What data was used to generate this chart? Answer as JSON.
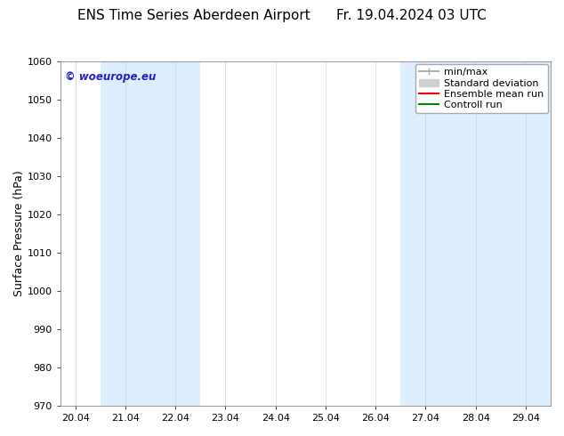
{
  "title": "ENS Time Series Aberdeen Airport",
  "title_right": "Fr. 19.04.2024 03 UTC",
  "ylabel": "Surface Pressure (hPa)",
  "ylim": [
    970,
    1060
  ],
  "yticks": [
    970,
    980,
    990,
    1000,
    1010,
    1020,
    1030,
    1040,
    1050,
    1060
  ],
  "xtick_labels": [
    "20.04",
    "21.04",
    "22.04",
    "23.04",
    "24.04",
    "25.04",
    "26.04",
    "27.04",
    "28.04",
    "29.04"
  ],
  "xtick_positions": [
    0,
    1,
    2,
    3,
    4,
    5,
    6,
    7,
    8,
    9
  ],
  "xlim": [
    -0.3,
    9.5
  ],
  "shaded_bands": [
    {
      "x_start": 0.5,
      "x_end": 1.5,
      "color": "#ddeeff"
    },
    {
      "x_start": 1.5,
      "x_end": 2.5,
      "color": "#ddeeff"
    },
    {
      "x_start": 6.5,
      "x_end": 7.5,
      "color": "#ddeeff"
    },
    {
      "x_start": 7.5,
      "x_end": 8.5,
      "color": "#ddeeff"
    },
    {
      "x_start": 8.5,
      "x_end": 9.5,
      "color": "#ddeeff"
    }
  ],
  "watermark_text": "© woeurope.eu",
  "watermark_color": "#2222cc",
  "legend_labels": [
    "min/max",
    "Standard deviation",
    "Ensemble mean run",
    "Controll run"
  ],
  "legend_minmax_color": "#b0b0b0",
  "legend_stddev_color": "#d0d0d0",
  "legend_mean_color": "#ff0000",
  "legend_ctrl_color": "#008800",
  "bg_color": "#ffffff",
  "plot_bg_color": "#ffffff",
  "title_fontsize": 11,
  "tick_fontsize": 8,
  "ylabel_fontsize": 9,
  "legend_fontsize": 8
}
